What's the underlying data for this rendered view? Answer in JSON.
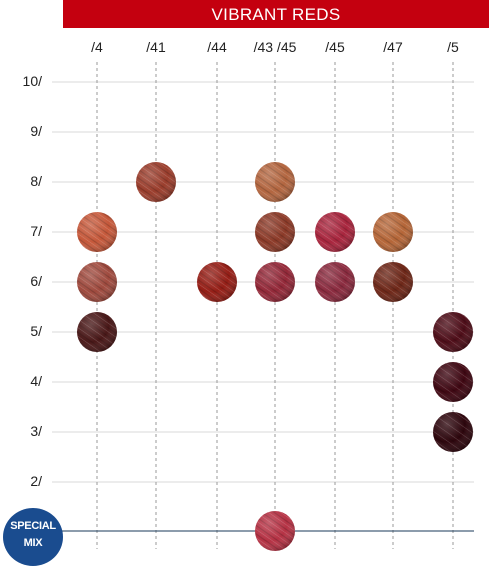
{
  "header": {
    "title": "VIBRANT REDS"
  },
  "columns": [
    {
      "id": "c4",
      "label": "/4"
    },
    {
      "id": "c41",
      "label": "/41"
    },
    {
      "id": "c44",
      "label": "/44"
    },
    {
      "id": "c4345",
      "label": "/43 /45"
    },
    {
      "id": "c45",
      "label": "/45"
    },
    {
      "id": "c47",
      "label": "/47"
    },
    {
      "id": "c5",
      "label": "/5"
    }
  ],
  "rows": [
    {
      "id": "r10",
      "label": "10/"
    },
    {
      "id": "r9",
      "label": "9/"
    },
    {
      "id": "r8",
      "label": "8/"
    },
    {
      "id": "r7",
      "label": "7/"
    },
    {
      "id": "r6",
      "label": "6/"
    },
    {
      "id": "r5",
      "label": "5/"
    },
    {
      "id": "r4",
      "label": "4/"
    },
    {
      "id": "r3",
      "label": "3/"
    },
    {
      "id": "r2",
      "label": "2/"
    }
  ],
  "special_mix": {
    "line1": "SPECIAL",
    "line2": "MIX"
  },
  "swatches": [
    {
      "col": "c41",
      "row": "r8",
      "color": "#9a3d2c"
    },
    {
      "col": "c4345",
      "row": "r8",
      "color": "#b36640"
    },
    {
      "col": "c4",
      "row": "r7",
      "color": "#c5583a"
    },
    {
      "col": "c4345",
      "row": "r7",
      "color": "#8c3a28"
    },
    {
      "col": "c45",
      "row": "r7",
      "color": "#a8253d"
    },
    {
      "col": "c47",
      "row": "r7",
      "color": "#b56638"
    },
    {
      "col": "c4",
      "row": "r6",
      "color": "#9f4a3e"
    },
    {
      "col": "c44",
      "row": "r6",
      "color": "#951e16"
    },
    {
      "col": "c4345",
      "row": "r6",
      "color": "#932838"
    },
    {
      "col": "c45",
      "row": "r6",
      "color": "#8a2a3e"
    },
    {
      "col": "c47",
      "row": "r6",
      "color": "#6e2718"
    },
    {
      "col": "c4",
      "row": "r5",
      "color": "#4a1818"
    },
    {
      "col": "c5",
      "row": "r5",
      "color": "#4e0d18"
    },
    {
      "col": "c5",
      "row": "r4",
      "color": "#3f0712"
    },
    {
      "col": "c5",
      "row": "r3",
      "color": "#2e060d"
    },
    {
      "col": "c4345",
      "row": "special",
      "color": "#b53244"
    }
  ],
  "colors": {
    "accent_red": "#c4000f",
    "special_blue": "#1a4c8f",
    "gridline": "#d9d9d9",
    "dashed_line": "#9a9a9a",
    "special_line": "#1a3a5a"
  }
}
